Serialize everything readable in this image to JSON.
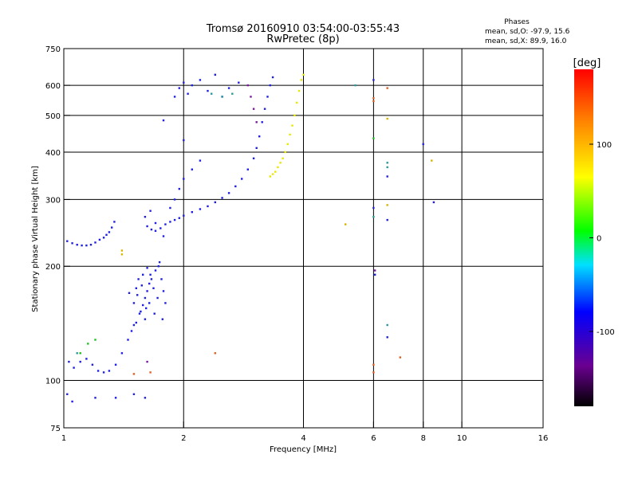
{
  "chart_data": {
    "type": "scatter",
    "title": "Tromsø 20160910 03:54:00-03:55:43",
    "subtitle": "RwPretec (8p)",
    "phase_stats": {
      "heading": "Phases",
      "o_mode": "mean, sd,O: -97.9, 15.6",
      "x_mode": "mean, sd,X:  89.9, 16.0"
    },
    "xlabel": "Frequency [MHz]",
    "ylabel": "Stationary phase Virtual Height [km]",
    "x_scale": "log2",
    "y_scale": "log",
    "xlim": [
      1,
      16
    ],
    "ylim": [
      75,
      750
    ],
    "x_ticks": [
      1,
      2,
      4,
      6,
      8,
      10,
      16
    ],
    "y_ticks": [
      75,
      100,
      200,
      300,
      400,
      500,
      600,
      750
    ],
    "colorbar": {
      "label": "[deg]",
      "range": [
        -180,
        180
      ],
      "ticks": [
        100,
        0,
        -100
      ]
    },
    "grid": true,
    "series": [
      {
        "color": "#2020e0",
        "points": [
          [
            1.02,
            233
          ],
          [
            1.05,
            230
          ],
          [
            1.08,
            228
          ],
          [
            1.11,
            227
          ],
          [
            1.14,
            227
          ],
          [
            1.17,
            228
          ],
          [
            1.2,
            231
          ],
          [
            1.23,
            235
          ],
          [
            1.26,
            238
          ],
          [
            1.28,
            242
          ],
          [
            1.3,
            246
          ],
          [
            1.32,
            253
          ],
          [
            1.34,
            262
          ],
          [
            1.03,
            112
          ],
          [
            1.06,
            108
          ],
          [
            1.1,
            112
          ],
          [
            1.14,
            114
          ],
          [
            1.18,
            110
          ],
          [
            1.22,
            106
          ],
          [
            1.26,
            105
          ],
          [
            1.3,
            106
          ],
          [
            1.35,
            110
          ],
          [
            1.4,
            118
          ],
          [
            1.45,
            128
          ],
          [
            1.48,
            135
          ],
          [
            1.52,
            142
          ],
          [
            1.55,
            150
          ],
          [
            1.58,
            158
          ],
          [
            1.6,
            165
          ],
          [
            1.62,
            172
          ],
          [
            1.64,
            180
          ],
          [
            1.46,
            170
          ],
          [
            1.5,
            160
          ],
          [
            1.52,
            175
          ],
          [
            1.54,
            185
          ],
          [
            1.56,
            152
          ],
          [
            1.58,
            190
          ],
          [
            1.6,
            145
          ],
          [
            1.62,
            198
          ],
          [
            1.64,
            160
          ],
          [
            1.66,
            185
          ],
          [
            1.68,
            175
          ],
          [
            1.7,
            195
          ],
          [
            1.72,
            165
          ],
          [
            1.74,
            205
          ],
          [
            1.76,
            185
          ],
          [
            1.78,
            172
          ],
          [
            1.8,
            160
          ],
          [
            1.5,
            140
          ],
          [
            1.53,
            168
          ],
          [
            1.57,
            178
          ],
          [
            1.61,
            155
          ],
          [
            1.65,
            190
          ],
          [
            1.69,
            150
          ],
          [
            1.73,
            200
          ],
          [
            1.77,
            145
          ],
          [
            1.62,
            255
          ],
          [
            1.66,
            250
          ],
          [
            1.7,
            248
          ],
          [
            1.75,
            252
          ],
          [
            1.8,
            258
          ],
          [
            1.85,
            262
          ],
          [
            1.9,
            265
          ],
          [
            1.95,
            268
          ],
          [
            2.0,
            272
          ],
          [
            2.1,
            278
          ],
          [
            2.2,
            283
          ],
          [
            2.3,
            288
          ],
          [
            2.4,
            295
          ],
          [
            2.5,
            303
          ],
          [
            2.6,
            312
          ],
          [
            2.7,
            325
          ],
          [
            2.8,
            340
          ],
          [
            2.9,
            360
          ],
          [
            3.0,
            385
          ],
          [
            3.05,
            410
          ],
          [
            3.1,
            440
          ],
          [
            3.15,
            480
          ],
          [
            3.2,
            520
          ],
          [
            3.25,
            560
          ],
          [
            3.3,
            600
          ],
          [
            3.35,
            630
          ],
          [
            1.6,
            270
          ],
          [
            1.65,
            280
          ],
          [
            1.7,
            260
          ],
          [
            1.78,
            240
          ],
          [
            1.85,
            285
          ],
          [
            1.9,
            300
          ],
          [
            1.95,
            320
          ],
          [
            2.0,
            340
          ],
          [
            2.1,
            360
          ],
          [
            2.2,
            380
          ],
          [
            1.9,
            560
          ],
          [
            1.95,
            590
          ],
          [
            2.0,
            610
          ],
          [
            2.05,
            570
          ],
          [
            2.1,
            600
          ],
          [
            2.2,
            620
          ],
          [
            2.3,
            580
          ],
          [
            2.4,
            640
          ],
          [
            2.5,
            560
          ],
          [
            2.6,
            590
          ],
          [
            2.75,
            610
          ],
          [
            1.78,
            485
          ],
          [
            2.0,
            430
          ],
          [
            1.02,
            92
          ],
          [
            1.05,
            88
          ],
          [
            1.2,
            90
          ],
          [
            1.35,
            90
          ],
          [
            1.5,
            92
          ],
          [
            1.6,
            90
          ],
          [
            6.0,
            620
          ],
          [
            6.05,
            190
          ],
          [
            6.5,
            130
          ],
          [
            8.0,
            420
          ],
          [
            8.5,
            295
          ],
          [
            6.5,
            345
          ],
          [
            6.0,
            285
          ],
          [
            6.5,
            265
          ]
        ]
      },
      {
        "color": "#2a9a9a",
        "points": [
          [
            2.35,
            570
          ],
          [
            2.5,
            560
          ],
          [
            2.65,
            570
          ],
          [
            1.08,
            118
          ],
          [
            5.4,
            600
          ],
          [
            6.5,
            375
          ],
          [
            6.5,
            365
          ],
          [
            6.5,
            140
          ],
          [
            6.0,
            270
          ]
        ]
      },
      {
        "color": "#e8e800",
        "points": [
          [
            3.3,
            345
          ],
          [
            3.35,
            350
          ],
          [
            3.4,
            355
          ],
          [
            3.45,
            365
          ],
          [
            3.5,
            375
          ],
          [
            3.55,
            385
          ],
          [
            3.6,
            400
          ],
          [
            3.65,
            420
          ],
          [
            3.7,
            445
          ],
          [
            3.75,
            470
          ],
          [
            3.8,
            500
          ],
          [
            3.85,
            540
          ],
          [
            3.9,
            580
          ],
          [
            3.95,
            620
          ],
          [
            4.0,
            640
          ]
        ]
      },
      {
        "color": "#e06020",
        "points": [
          [
            2.4,
            118
          ],
          [
            6.0,
            110
          ],
          [
            6.0,
            105
          ],
          [
            7.0,
            115
          ],
          [
            6.5,
            590
          ],
          [
            6.0,
            555
          ],
          [
            6.0,
            545
          ],
          [
            1.65,
            105
          ],
          [
            1.5,
            104
          ]
        ]
      },
      {
        "color": "#d8b400",
        "points": [
          [
            1.4,
            220
          ],
          [
            1.4,
            215
          ],
          [
            5.1,
            258
          ],
          [
            8.4,
            380
          ],
          [
            6.5,
            490
          ],
          [
            6.5,
            290
          ]
        ]
      },
      {
        "color": "#20c020",
        "points": [
          [
            1.1,
            118
          ],
          [
            1.15,
            125
          ],
          [
            1.2,
            128
          ],
          [
            6.0,
            435
          ]
        ]
      },
      {
        "color": "#7a1aa0",
        "points": [
          [
            1.62,
            112
          ],
          [
            6.05,
            195
          ],
          [
            2.9,
            600
          ],
          [
            2.95,
            560
          ],
          [
            3.0,
            520
          ],
          [
            3.05,
            480
          ]
        ]
      }
    ]
  }
}
